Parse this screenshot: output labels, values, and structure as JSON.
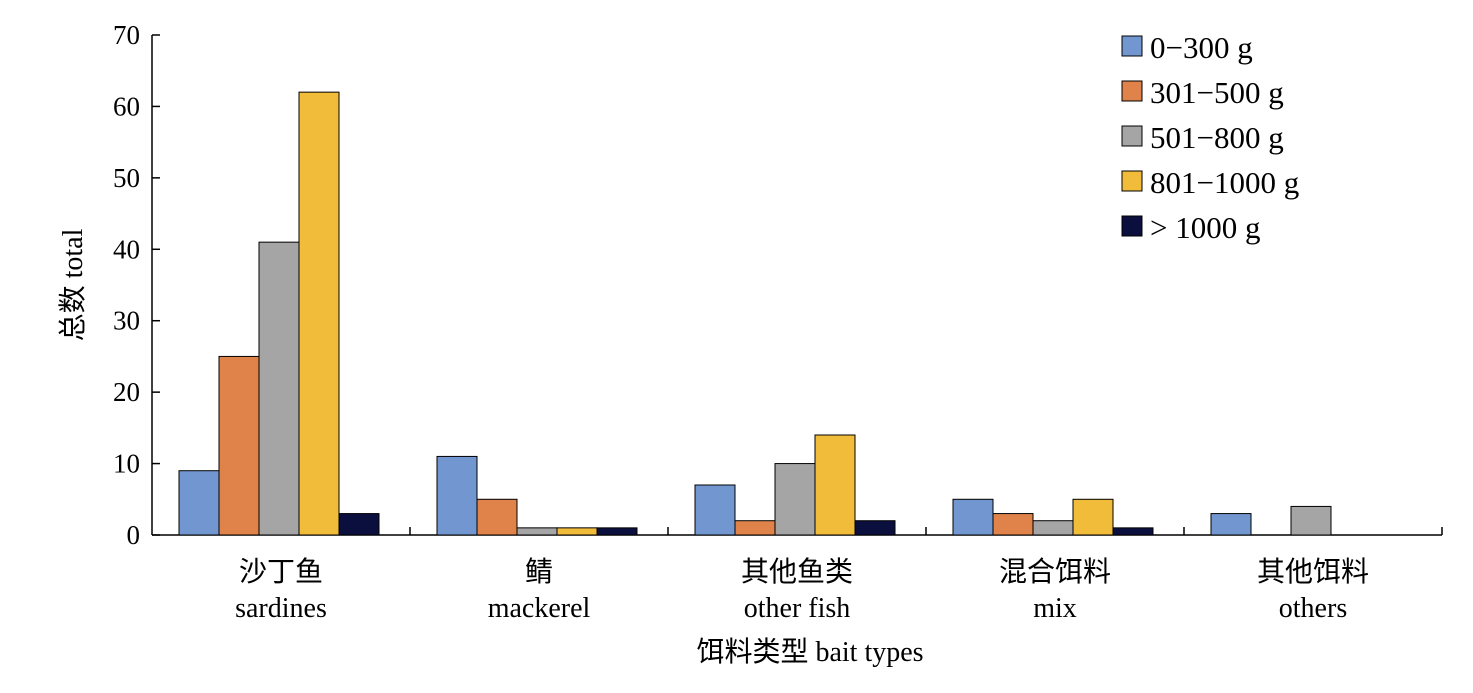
{
  "chart_data": {
    "type": "bar",
    "title": "",
    "ylabel": "总数 total",
    "xlabel": "饵料类型 bait types",
    "ylim": [
      0,
      70
    ],
    "yticks": [
      0,
      10,
      20,
      30,
      40,
      50,
      60,
      70
    ],
    "grid": false,
    "legend_position": "top-right",
    "categories": [
      {
        "cn": "沙丁鱼",
        "en": "sardines"
      },
      {
        "cn": "鲭",
        "en": "mackerel"
      },
      {
        "cn": "其他鱼类",
        "en": "other fish"
      },
      {
        "cn": "混合饵料",
        "en": "mix"
      },
      {
        "cn": "其他饵料",
        "en": "others"
      }
    ],
    "series": [
      {
        "name": "0−300 g",
        "color": "#7297d0",
        "values": [
          9,
          11,
          7,
          5,
          3
        ]
      },
      {
        "name": "301−500 g",
        "color": "#e0834a",
        "values": [
          25,
          5,
          2,
          3,
          0
        ]
      },
      {
        "name": "501−800 g",
        "color": "#a5a5a5",
        "values": [
          41,
          1,
          10,
          2,
          4
        ]
      },
      {
        "name": "801−1000 g",
        "color": "#f2bc3b",
        "values": [
          62,
          1,
          14,
          5,
          0
        ]
      },
      {
        "name": "> 1000 g",
        "color": "#0b0f3e",
        "values": [
          3,
          1,
          2,
          1,
          0
        ]
      }
    ]
  }
}
